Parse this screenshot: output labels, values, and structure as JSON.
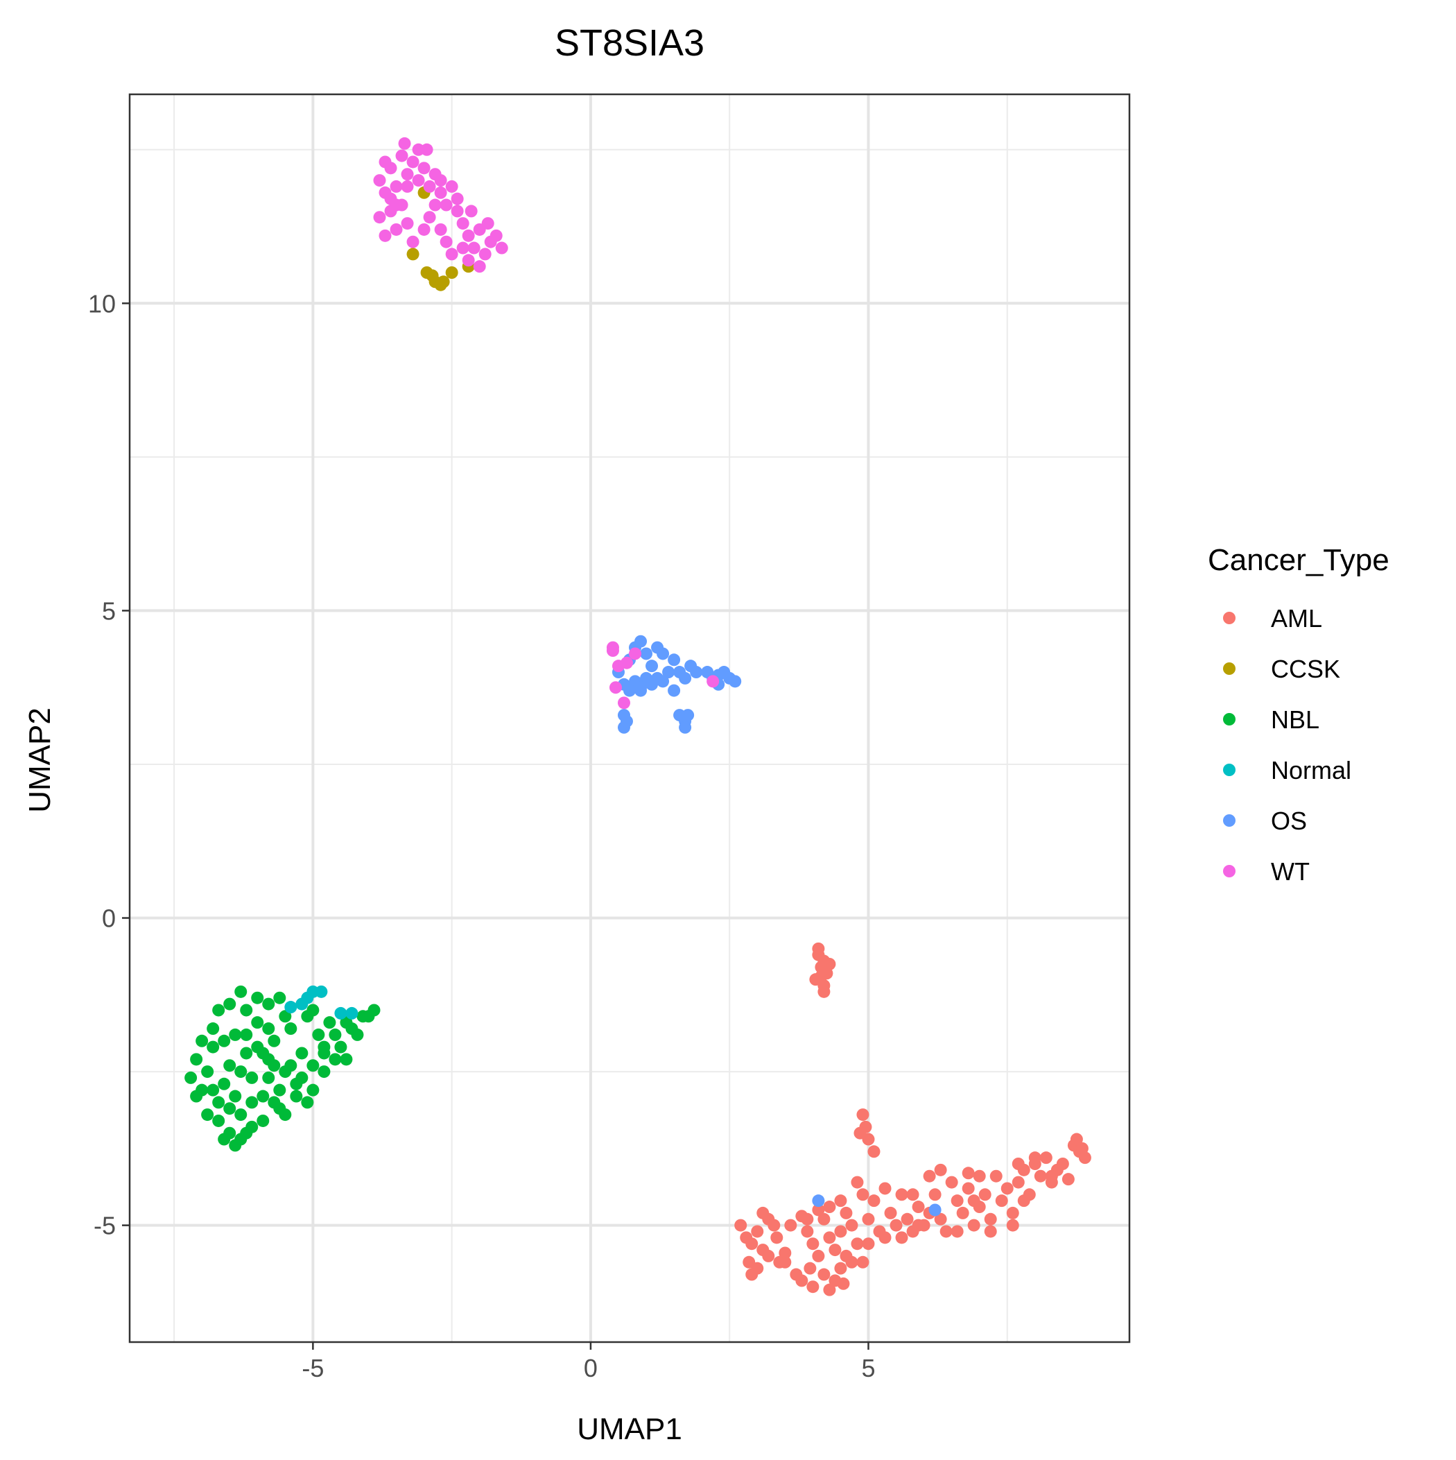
{
  "chart_data": {
    "type": "scatter",
    "title": "ST8SIA3",
    "xlabel": "UMAP1",
    "ylabel": "UMAP2",
    "xlim": [
      -8.3,
      9.7
    ],
    "ylim": [
      -6.9,
      13.4
    ],
    "x_ticks": [
      -5,
      0,
      5
    ],
    "y_ticks": [
      -5,
      0,
      5,
      10
    ],
    "grid": true,
    "legend": {
      "title": "Cancer_Type",
      "placement": "right"
    },
    "series": [
      {
        "name": "AML",
        "color": "#F8766D",
        "points": [
          [
            4.1,
            -0.6
          ],
          [
            4.2,
            -0.7
          ],
          [
            4.15,
            -0.8
          ],
          [
            4.25,
            -0.9
          ],
          [
            4.05,
            -1.0
          ],
          [
            4.2,
            -1.1
          ],
          [
            4.3,
            -0.75
          ],
          [
            4.1,
            -0.5
          ],
          [
            4.2,
            -1.2
          ],
          [
            4.15,
            -0.95
          ],
          [
            4.9,
            -3.2
          ],
          [
            4.95,
            -3.4
          ],
          [
            5.0,
            -3.6
          ],
          [
            4.85,
            -3.5
          ],
          [
            5.1,
            -3.8
          ],
          [
            2.7,
            -5.0
          ],
          [
            2.8,
            -5.2
          ],
          [
            2.9,
            -5.3
          ],
          [
            3.0,
            -5.1
          ],
          [
            3.1,
            -5.4
          ],
          [
            2.85,
            -5.6
          ],
          [
            3.0,
            -5.7
          ],
          [
            3.2,
            -5.5
          ],
          [
            3.3,
            -5.0
          ],
          [
            3.4,
            -5.6
          ],
          [
            2.9,
            -5.8
          ],
          [
            3.1,
            -4.8
          ],
          [
            3.2,
            -4.9
          ],
          [
            3.35,
            -5.2
          ],
          [
            3.5,
            -5.45
          ],
          [
            3.6,
            -5.0
          ],
          [
            3.8,
            -4.85
          ],
          [
            3.9,
            -5.1
          ],
          [
            4.0,
            -5.3
          ],
          [
            4.1,
            -5.5
          ],
          [
            4.2,
            -4.9
          ],
          [
            4.3,
            -5.2
          ],
          [
            4.4,
            -5.4
          ],
          [
            4.5,
            -5.1
          ],
          [
            4.6,
            -4.8
          ],
          [
            4.7,
            -5.0
          ],
          [
            4.8,
            -5.3
          ],
          [
            4.9,
            -5.6
          ],
          [
            5.0,
            -4.9
          ],
          [
            4.5,
            -4.6
          ],
          [
            4.3,
            -4.7
          ],
          [
            4.1,
            -4.75
          ],
          [
            3.9,
            -4.9
          ],
          [
            3.95,
            -5.7
          ],
          [
            4.2,
            -5.8
          ],
          [
            4.4,
            -5.9
          ],
          [
            4.5,
            -5.7
          ],
          [
            4.6,
            -5.5
          ],
          [
            3.7,
            -5.8
          ],
          [
            3.5,
            -5.6
          ],
          [
            3.8,
            -5.9
          ],
          [
            4.0,
            -6.0
          ],
          [
            4.3,
            -6.05
          ],
          [
            4.55,
            -5.95
          ],
          [
            4.7,
            -5.6
          ],
          [
            4.8,
            -4.3
          ],
          [
            4.9,
            -4.5
          ],
          [
            5.1,
            -4.6
          ],
          [
            5.3,
            -4.4
          ],
          [
            5.4,
            -4.8
          ],
          [
            5.5,
            -5.0
          ],
          [
            5.6,
            -5.2
          ],
          [
            5.7,
            -4.9
          ],
          [
            5.8,
            -5.1
          ],
          [
            5.9,
            -4.7
          ],
          [
            6.0,
            -5.0
          ],
          [
            6.1,
            -4.8
          ],
          [
            6.2,
            -4.5
          ],
          [
            6.3,
            -4.9
          ],
          [
            6.4,
            -5.1
          ],
          [
            6.5,
            -4.3
          ],
          [
            6.6,
            -4.6
          ],
          [
            6.7,
            -4.8
          ],
          [
            6.8,
            -4.4
          ],
          [
            6.9,
            -5.0
          ],
          [
            7.0,
            -4.7
          ],
          [
            7.1,
            -4.5
          ],
          [
            7.2,
            -4.9
          ],
          [
            7.3,
            -4.2
          ],
          [
            7.4,
            -4.6
          ],
          [
            7.5,
            -4.4
          ],
          [
            7.6,
            -4.8
          ],
          [
            7.7,
            -4.3
          ],
          [
            7.8,
            -4.1
          ],
          [
            7.9,
            -4.5
          ],
          [
            8.0,
            -4.0
          ],
          [
            8.1,
            -4.2
          ],
          [
            8.2,
            -3.9
          ],
          [
            8.3,
            -4.3
          ],
          [
            8.4,
            -4.1
          ],
          [
            8.5,
            -4.0
          ],
          [
            8.6,
            -4.25
          ],
          [
            8.7,
            -3.7
          ],
          [
            8.8,
            -3.8
          ],
          [
            8.9,
            -3.9
          ],
          [
            8.75,
            -3.6
          ],
          [
            8.85,
            -3.75
          ],
          [
            6.1,
            -4.2
          ],
          [
            6.3,
            -4.1
          ],
          [
            6.8,
            -4.15
          ],
          [
            7.0,
            -4.2
          ],
          [
            7.7,
            -4.0
          ],
          [
            8.0,
            -3.9
          ],
          [
            8.3,
            -4.2
          ],
          [
            5.2,
            -5.1
          ],
          [
            5.6,
            -4.5
          ],
          [
            5.9,
            -5.0
          ],
          [
            6.6,
            -5.1
          ],
          [
            7.2,
            -5.1
          ],
          [
            7.6,
            -5.0
          ],
          [
            5.3,
            -5.2
          ],
          [
            5.8,
            -4.5
          ],
          [
            6.9,
            -4.6
          ],
          [
            7.8,
            -4.6
          ],
          [
            5.0,
            -5.3
          ]
        ]
      },
      {
        "name": "CCSK",
        "color": "#B79F00",
        "points": [
          [
            -3.2,
            10.8
          ],
          [
            -2.95,
            10.5
          ],
          [
            -2.85,
            10.45
          ],
          [
            -2.8,
            10.35
          ],
          [
            -2.7,
            10.3
          ],
          [
            -2.65,
            10.35
          ],
          [
            -2.5,
            10.5
          ],
          [
            -2.2,
            10.6
          ],
          [
            -3.0,
            11.8
          ]
        ]
      },
      {
        "name": "NBL",
        "color": "#00BA38",
        "points": [
          [
            -7.2,
            -2.6
          ],
          [
            -7.1,
            -2.3
          ],
          [
            -7.0,
            -2.8
          ],
          [
            -6.9,
            -2.5
          ],
          [
            -6.8,
            -2.1
          ],
          [
            -6.7,
            -3.0
          ],
          [
            -6.6,
            -2.7
          ],
          [
            -6.5,
            -2.4
          ],
          [
            -6.4,
            -1.9
          ],
          [
            -6.3,
            -3.2
          ],
          [
            -6.2,
            -2.2
          ],
          [
            -6.1,
            -2.6
          ],
          [
            -6.0,
            -1.7
          ],
          [
            -5.9,
            -2.9
          ],
          [
            -5.8,
            -2.3
          ],
          [
            -5.7,
            -2.0
          ],
          [
            -5.6,
            -3.1
          ],
          [
            -5.5,
            -2.5
          ],
          [
            -5.4,
            -1.8
          ],
          [
            -5.3,
            -2.7
          ],
          [
            -5.2,
            -2.2
          ],
          [
            -5.1,
            -1.6
          ],
          [
            -5.0,
            -2.4
          ],
          [
            -4.9,
            -1.9
          ],
          [
            -4.8,
            -2.1
          ],
          [
            -4.7,
            -1.7
          ],
          [
            -4.6,
            -1.9
          ],
          [
            -4.5,
            -2.1
          ],
          [
            -4.4,
            -1.7
          ],
          [
            -4.3,
            -1.8
          ],
          [
            -4.2,
            -1.9
          ],
          [
            -4.0,
            -1.6
          ],
          [
            -3.9,
            -1.5
          ],
          [
            -6.5,
            -1.4
          ],
          [
            -6.3,
            -1.2
          ],
          [
            -6.2,
            -1.5
          ],
          [
            -6.0,
            -1.3
          ],
          [
            -5.8,
            -1.4
          ],
          [
            -5.6,
            -1.3
          ],
          [
            -6.8,
            -1.8
          ],
          [
            -7.0,
            -2.0
          ],
          [
            -6.7,
            -3.3
          ],
          [
            -6.5,
            -3.5
          ],
          [
            -6.3,
            -3.6
          ],
          [
            -6.1,
            -3.4
          ],
          [
            -5.9,
            -3.3
          ],
          [
            -5.7,
            -3.0
          ],
          [
            -5.5,
            -3.2
          ],
          [
            -5.3,
            -2.9
          ],
          [
            -6.9,
            -3.2
          ],
          [
            -6.6,
            -3.6
          ],
          [
            -6.4,
            -3.7
          ],
          [
            -6.2,
            -3.5
          ],
          [
            -5.8,
            -2.6
          ],
          [
            -5.6,
            -2.8
          ],
          [
            -5.4,
            -2.4
          ],
          [
            -5.2,
            -2.6
          ],
          [
            -5.0,
            -2.8
          ],
          [
            -4.8,
            -2.5
          ],
          [
            -4.6,
            -2.3
          ],
          [
            -6.0,
            -2.1
          ],
          [
            -6.2,
            -1.9
          ],
          [
            -6.4,
            -2.9
          ],
          [
            -6.6,
            -2.0
          ],
          [
            -5.8,
            -1.8
          ],
          [
            -5.5,
            -1.6
          ],
          [
            -6.8,
            -2.8
          ],
          [
            -7.1,
            -2.9
          ],
          [
            -6.3,
            -2.5
          ],
          [
            -5.9,
            -2.2
          ],
          [
            -4.8,
            -2.2
          ],
          [
            -5.1,
            -3.0
          ],
          [
            -6.5,
            -3.1
          ],
          [
            -6.1,
            -3.0
          ],
          [
            -5.7,
            -2.4
          ],
          [
            -4.4,
            -2.3
          ],
          [
            -4.1,
            -1.6
          ],
          [
            -5.0,
            -1.5
          ],
          [
            -6.7,
            -1.5
          ]
        ]
      },
      {
        "name": "Normal",
        "color": "#00BFC4",
        "points": [
          [
            -5.4,
            -1.45
          ],
          [
            -5.2,
            -1.4
          ],
          [
            -5.0,
            -1.2
          ],
          [
            -4.85,
            -1.2
          ],
          [
            -4.5,
            -1.55
          ],
          [
            -4.3,
            -1.55
          ],
          [
            -5.1,
            -1.3
          ]
        ]
      },
      {
        "name": "OS",
        "color": "#619CFF",
        "points": [
          [
            0.5,
            4.0
          ],
          [
            0.6,
            3.8
          ],
          [
            0.7,
            4.2
          ],
          [
            0.8,
            4.4
          ],
          [
            0.9,
            4.5
          ],
          [
            1.0,
            4.3
          ],
          [
            1.1,
            4.1
          ],
          [
            1.2,
            4.4
          ],
          [
            1.3,
            4.3
          ],
          [
            1.4,
            4.0
          ],
          [
            1.5,
            4.2
          ],
          [
            1.6,
            4.0
          ],
          [
            1.7,
            3.9
          ],
          [
            1.8,
            4.1
          ],
          [
            1.9,
            4.0
          ],
          [
            2.1,
            4.0
          ],
          [
            2.2,
            3.9
          ],
          [
            2.3,
            3.95
          ],
          [
            2.4,
            4.0
          ],
          [
            2.5,
            3.9
          ],
          [
            2.6,
            3.85
          ],
          [
            0.6,
            3.3
          ],
          [
            0.6,
            3.1
          ],
          [
            0.65,
            3.2
          ],
          [
            1.6,
            3.3
          ],
          [
            1.7,
            3.2
          ],
          [
            1.75,
            3.3
          ],
          [
            1.7,
            3.1
          ],
          [
            0.9,
            3.7
          ],
          [
            1.0,
            3.9
          ],
          [
            1.1,
            3.8
          ],
          [
            1.2,
            3.9
          ],
          [
            0.8,
            3.85
          ],
          [
            0.7,
            3.7
          ],
          [
            0.9,
            3.75
          ],
          [
            1.3,
            3.85
          ],
          [
            1.5,
            3.7
          ],
          [
            2.3,
            3.8
          ],
          [
            6.2,
            -4.75
          ],
          [
            4.1,
            -4.6
          ]
        ]
      },
      {
        "name": "WT",
        "color": "#F564E3",
        "points": [
          [
            -3.8,
            12.0
          ],
          [
            -3.7,
            11.8
          ],
          [
            -3.6,
            12.2
          ],
          [
            -3.5,
            11.9
          ],
          [
            -3.4,
            12.4
          ],
          [
            -3.3,
            12.1
          ],
          [
            -3.2,
            12.3
          ],
          [
            -3.1,
            12.0
          ],
          [
            -3.0,
            12.2
          ],
          [
            -2.9,
            11.9
          ],
          [
            -2.8,
            12.1
          ],
          [
            -2.7,
            11.8
          ],
          [
            -2.6,
            11.6
          ],
          [
            -2.5,
            11.9
          ],
          [
            -2.4,
            11.5
          ],
          [
            -2.3,
            11.3
          ],
          [
            -2.2,
            11.1
          ],
          [
            -2.1,
            10.9
          ],
          [
            -2.0,
            11.2
          ],
          [
            -1.9,
            10.8
          ],
          [
            -1.8,
            11.0
          ],
          [
            -1.7,
            11.1
          ],
          [
            -1.6,
            10.9
          ],
          [
            -3.8,
            11.4
          ],
          [
            -3.7,
            11.1
          ],
          [
            -3.6,
            11.5
          ],
          [
            -3.5,
            11.2
          ],
          [
            -3.4,
            11.6
          ],
          [
            -3.3,
            11.3
          ],
          [
            -3.2,
            11.0
          ],
          [
            -3.0,
            11.2
          ],
          [
            -2.9,
            11.4
          ],
          [
            -2.8,
            11.6
          ],
          [
            -2.7,
            11.2
          ],
          [
            -2.6,
            11.0
          ],
          [
            -2.5,
            10.8
          ],
          [
            -2.2,
            10.7
          ],
          [
            -2.0,
            10.6
          ],
          [
            -3.35,
            12.6
          ],
          [
            -3.1,
            12.5
          ],
          [
            -2.95,
            12.5
          ],
          [
            -3.7,
            12.3
          ],
          [
            -3.5,
            11.6
          ],
          [
            -2.4,
            11.7
          ],
          [
            -1.85,
            11.3
          ],
          [
            -2.15,
            11.5
          ],
          [
            -2.7,
            12.0
          ],
          [
            -3.6,
            11.7
          ],
          [
            -3.3,
            11.9
          ],
          [
            -2.3,
            10.9
          ],
          [
            0.4,
            4.35
          ],
          [
            0.5,
            4.1
          ],
          [
            0.45,
            3.75
          ],
          [
            0.6,
            3.5
          ],
          [
            0.8,
            4.3
          ],
          [
            0.65,
            4.15
          ],
          [
            2.2,
            3.85
          ],
          [
            0.4,
            4.4
          ]
        ]
      }
    ]
  }
}
